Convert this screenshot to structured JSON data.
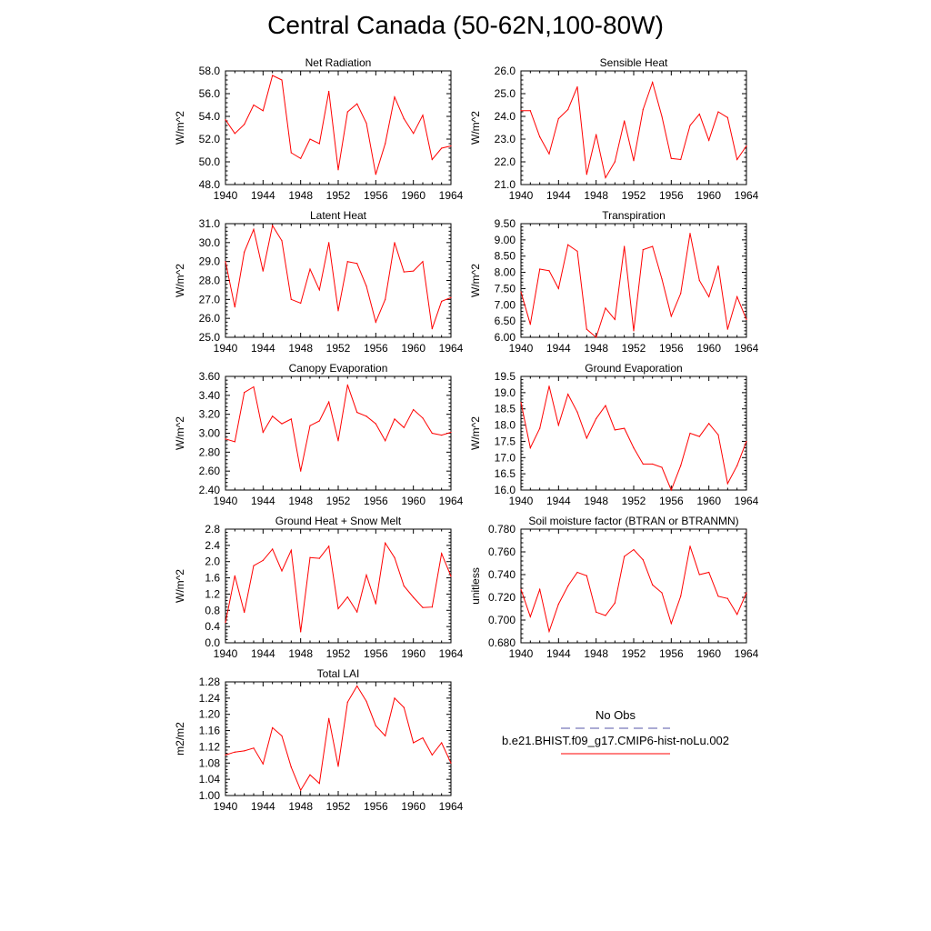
{
  "title": "Central Canada (50-62N,100-80W)",
  "years": [
    1940,
    1941,
    1942,
    1943,
    1944,
    1945,
    1946,
    1947,
    1948,
    1949,
    1950,
    1951,
    1952,
    1953,
    1954,
    1955,
    1956,
    1957,
    1958,
    1959,
    1960,
    1961,
    1962,
    1963,
    1964
  ],
  "chart_data": [
    {
      "type": "line",
      "title": "Net Radiation",
      "ylabel": "W/m^2",
      "xlim": [
        1940,
        1964
      ],
      "ylim": [
        48.0,
        58.0
      ],
      "yticks": [
        48.0,
        50.0,
        52.0,
        54.0,
        56.0,
        58.0
      ],
      "ytick_labels": [
        "48.0",
        "50.0",
        "52.0",
        "54.0",
        "56.0",
        "58.0"
      ],
      "series": [
        {
          "color": "#ff0000",
          "values": [
            53.7,
            52.5,
            53.3,
            55.0,
            54.5,
            57.6,
            57.2,
            50.8,
            50.3,
            52.0,
            51.6,
            56.2,
            49.3,
            54.4,
            55.1,
            53.4,
            48.9,
            51.6,
            55.7,
            53.8,
            52.5,
            54.1,
            50.2,
            51.2,
            51.4
          ]
        }
      ]
    },
    {
      "type": "line",
      "title": "Sensible Heat",
      "ylabel": "W/m^2",
      "xlim": [
        1940,
        1964
      ],
      "ylim": [
        21.0,
        26.0
      ],
      "yticks": [
        21.0,
        22.0,
        23.0,
        24.0,
        25.0,
        26.0
      ],
      "ytick_labels": [
        "21.0",
        "22.0",
        "23.0",
        "24.0",
        "25.0",
        "26.0"
      ],
      "series": [
        {
          "color": "#ff0000",
          "values": [
            24.25,
            24.25,
            23.1,
            22.35,
            23.9,
            24.3,
            25.3,
            21.45,
            23.2,
            21.3,
            22.0,
            23.8,
            22.05,
            24.3,
            25.5,
            24.0,
            22.15,
            22.1,
            23.6,
            24.1,
            22.95,
            24.2,
            23.95,
            22.1,
            22.7
          ]
        }
      ]
    },
    {
      "type": "line",
      "title": "Latent Heat",
      "ylabel": "W/m^2",
      "xlim": [
        1940,
        1964
      ],
      "ylim": [
        25.0,
        31.0
      ],
      "yticks": [
        25.0,
        26.0,
        27.0,
        28.0,
        29.0,
        30.0,
        31.0
      ],
      "ytick_labels": [
        "25.0",
        "26.0",
        "27.0",
        "28.0",
        "29.0",
        "30.0",
        "31.0"
      ],
      "series": [
        {
          "color": "#ff0000",
          "values": [
            29.0,
            26.6,
            29.5,
            30.7,
            28.5,
            30.9,
            30.1,
            27.0,
            26.8,
            28.6,
            27.5,
            30.0,
            26.4,
            29.0,
            28.9,
            27.7,
            25.8,
            27.0,
            30.0,
            28.45,
            28.5,
            29.0,
            25.45,
            26.9,
            27.1
          ]
        }
      ]
    },
    {
      "type": "line",
      "title": "Transpiration",
      "ylabel": "W/m^2",
      "xlim": [
        1940,
        1964
      ],
      "ylim": [
        6.0,
        9.5
      ],
      "yticks": [
        6.0,
        6.5,
        7.0,
        7.5,
        8.0,
        8.5,
        9.0,
        9.5
      ],
      "ytick_labels": [
        "6.00",
        "6.50",
        "7.00",
        "7.50",
        "8.00",
        "8.50",
        "9.00",
        "9.50"
      ],
      "series": [
        {
          "color": "#ff0000",
          "values": [
            7.4,
            6.4,
            8.1,
            8.05,
            7.5,
            8.85,
            8.65,
            6.25,
            6.0,
            6.9,
            6.55,
            8.8,
            6.2,
            8.7,
            8.8,
            7.8,
            6.65,
            7.35,
            9.2,
            7.75,
            7.25,
            8.2,
            6.25,
            7.25,
            6.55
          ]
        }
      ]
    },
    {
      "type": "line",
      "title": "Canopy Evaporation",
      "ylabel": "W/m^2",
      "xlim": [
        1940,
        1964
      ],
      "ylim": [
        2.4,
        3.6
      ],
      "yticks": [
        2.4,
        2.6,
        2.8,
        3.0,
        3.2,
        3.4,
        3.6
      ],
      "ytick_labels": [
        "2.40",
        "2.60",
        "2.80",
        "3.00",
        "3.20",
        "3.40",
        "3.60"
      ],
      "series": [
        {
          "color": "#ff0000",
          "values": [
            2.94,
            2.91,
            3.43,
            3.49,
            3.01,
            3.18,
            3.1,
            3.15,
            2.6,
            3.08,
            3.13,
            3.33,
            2.92,
            3.51,
            3.22,
            3.18,
            3.1,
            2.92,
            3.15,
            3.06,
            3.25,
            3.16,
            3.0,
            2.98,
            3.01
          ]
        }
      ]
    },
    {
      "type": "line",
      "title": "Ground Evaporation",
      "ylabel": "W/m^2",
      "xlim": [
        1940,
        1964
      ],
      "ylim": [
        16.0,
        19.5
      ],
      "yticks": [
        16.0,
        16.5,
        17.0,
        17.5,
        18.0,
        18.5,
        19.0,
        19.5
      ],
      "ytick_labels": [
        "16.0",
        "16.5",
        "17.0",
        "17.5",
        "18.0",
        "18.5",
        "19.0",
        "19.5"
      ],
      "series": [
        {
          "color": "#ff0000",
          "values": [
            18.7,
            17.3,
            17.9,
            19.2,
            18.0,
            18.95,
            18.4,
            17.6,
            18.2,
            18.6,
            17.85,
            17.9,
            17.3,
            16.8,
            16.8,
            16.7,
            16.0,
            16.75,
            17.75,
            17.65,
            18.05,
            17.7,
            16.2,
            16.75,
            17.5
          ]
        }
      ]
    },
    {
      "type": "line",
      "title": "Ground Heat + Snow Melt",
      "ylabel": "W/m^2",
      "xlim": [
        1940,
        1964
      ],
      "ylim": [
        0.0,
        2.8
      ],
      "yticks": [
        0.0,
        0.4,
        0.8,
        1.2,
        1.6,
        2.0,
        2.4,
        2.8
      ],
      "ytick_labels": [
        "0.0",
        "0.4",
        "0.8",
        "1.2",
        "1.6",
        "2.0",
        "2.4",
        "2.8"
      ],
      "series": [
        {
          "color": "#ff0000",
          "values": [
            0.5,
            1.65,
            0.75,
            1.9,
            2.03,
            2.31,
            1.77,
            2.28,
            0.27,
            2.1,
            2.08,
            2.38,
            0.84,
            1.13,
            0.76,
            1.67,
            0.96,
            2.46,
            2.1,
            1.4,
            1.12,
            0.87,
            0.88,
            2.2,
            1.64
          ]
        }
      ]
    },
    {
      "type": "line",
      "title": "Soil moisture factor (BTRAN or BTRANMN)",
      "ylabel": "unitless",
      "xlim": [
        1940,
        1964
      ],
      "ylim": [
        0.68,
        0.78
      ],
      "yticks": [
        0.68,
        0.7,
        0.72,
        0.74,
        0.76,
        0.78
      ],
      "ytick_labels": [
        "0.680",
        "0.700",
        "0.720",
        "0.740",
        "0.760",
        "0.780"
      ],
      "series": [
        {
          "color": "#ff0000",
          "values": [
            0.727,
            0.703,
            0.727,
            0.69,
            0.714,
            0.73,
            0.742,
            0.739,
            0.707,
            0.704,
            0.715,
            0.756,
            0.762,
            0.753,
            0.731,
            0.724,
            0.697,
            0.721,
            0.765,
            0.74,
            0.742,
            0.721,
            0.719,
            0.705,
            0.724
          ]
        }
      ]
    },
    {
      "type": "line",
      "title": "Total LAI",
      "ylabel": "m2/m2",
      "xlim": [
        1940,
        1964
      ],
      "ylim": [
        1.0,
        1.28
      ],
      "yticks": [
        1.0,
        1.04,
        1.08,
        1.12,
        1.16,
        1.2,
        1.24,
        1.28
      ],
      "ytick_labels": [
        "1.00",
        "1.04",
        "1.08",
        "1.12",
        "1.16",
        "1.20",
        "1.24",
        "1.28"
      ],
      "series": [
        {
          "color": "#ff0000",
          "values": [
            1.1,
            1.107,
            1.11,
            1.117,
            1.078,
            1.167,
            1.147,
            1.07,
            1.013,
            1.051,
            1.03,
            1.19,
            1.072,
            1.23,
            1.27,
            1.232,
            1.172,
            1.147,
            1.24,
            1.217,
            1.13,
            1.142,
            1.1,
            1.13,
            1.08
          ]
        }
      ]
    }
  ],
  "xtick_labels": [
    "1940",
    "1944",
    "1948",
    "1952",
    "1956",
    "1960",
    "1964"
  ],
  "legend": {
    "obs_label": "No Obs",
    "obs_color": "#5555aa",
    "model_label": "b.e21.BHIST.f09_g17.CMIP6-hist-noLu.002",
    "model_color": "#ff0000"
  }
}
